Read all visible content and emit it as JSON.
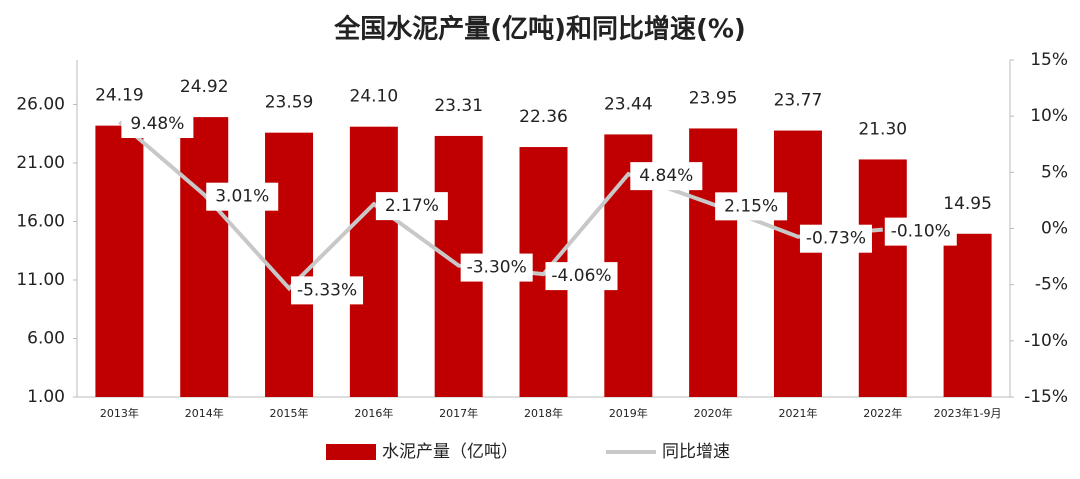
{
  "chart_data": {
    "type": "bar_line",
    "title": "全国水泥产量(亿吨)和同比增速(%)",
    "categories": [
      "2013年",
      "2014年",
      "2015年",
      "2016年",
      "2017年",
      "2018年",
      "2019年",
      "2020年",
      "2021年",
      "2022年",
      "2023年1-9月"
    ],
    "series": [
      {
        "name": "水泥产量（亿吨）",
        "type": "bar",
        "color": "#c00000",
        "values": [
          24.19,
          24.92,
          23.59,
          24.1,
          23.31,
          22.36,
          23.44,
          23.95,
          23.77,
          21.3,
          14.95
        ],
        "value_labels": [
          "24.19",
          "24.92",
          "23.59",
          "24.10",
          "23.31",
          "22.36",
          "23.44",
          "23.95",
          "23.77",
          "21.30",
          "14.95"
        ]
      },
      {
        "name": "同比增速",
        "type": "line",
        "axis": "y2",
        "color": "#c8c8c8",
        "values": [
          9.48,
          3.01,
          -5.33,
          2.17,
          -3.3,
          -4.06,
          4.84,
          2.15,
          -0.73,
          -0.1,
          null
        ],
        "value_labels": [
          "9.48%",
          "3.01%",
          "-5.33%",
          "2.17%",
          "-3.30%",
          "-4.06%",
          "4.84%",
          "2.15%",
          "-0.73%",
          "-0.10%",
          null
        ]
      }
    ],
    "ylim": [
      1,
      29.8
    ],
    "yticks": [
      {
        "value": 1,
        "label": "1.00"
      },
      {
        "value": 6,
        "label": "6.00"
      },
      {
        "value": 11,
        "label": "11.00"
      },
      {
        "value": 16,
        "label": "16.00"
      },
      {
        "value": 21,
        "label": "21.00"
      },
      {
        "value": 26,
        "label": "26.00"
      }
    ],
    "y2lim": [
      -15,
      15
    ],
    "y2ticks": [
      {
        "value": -15,
        "label": "-15%"
      },
      {
        "value": -10,
        "label": "-10%"
      },
      {
        "value": -5,
        "label": "-5%"
      },
      {
        "value": 0,
        "label": "0%"
      },
      {
        "value": 5,
        "label": "5%"
      },
      {
        "value": 10,
        "label": "10%"
      },
      {
        "value": 15,
        "label": "15%"
      }
    ]
  }
}
